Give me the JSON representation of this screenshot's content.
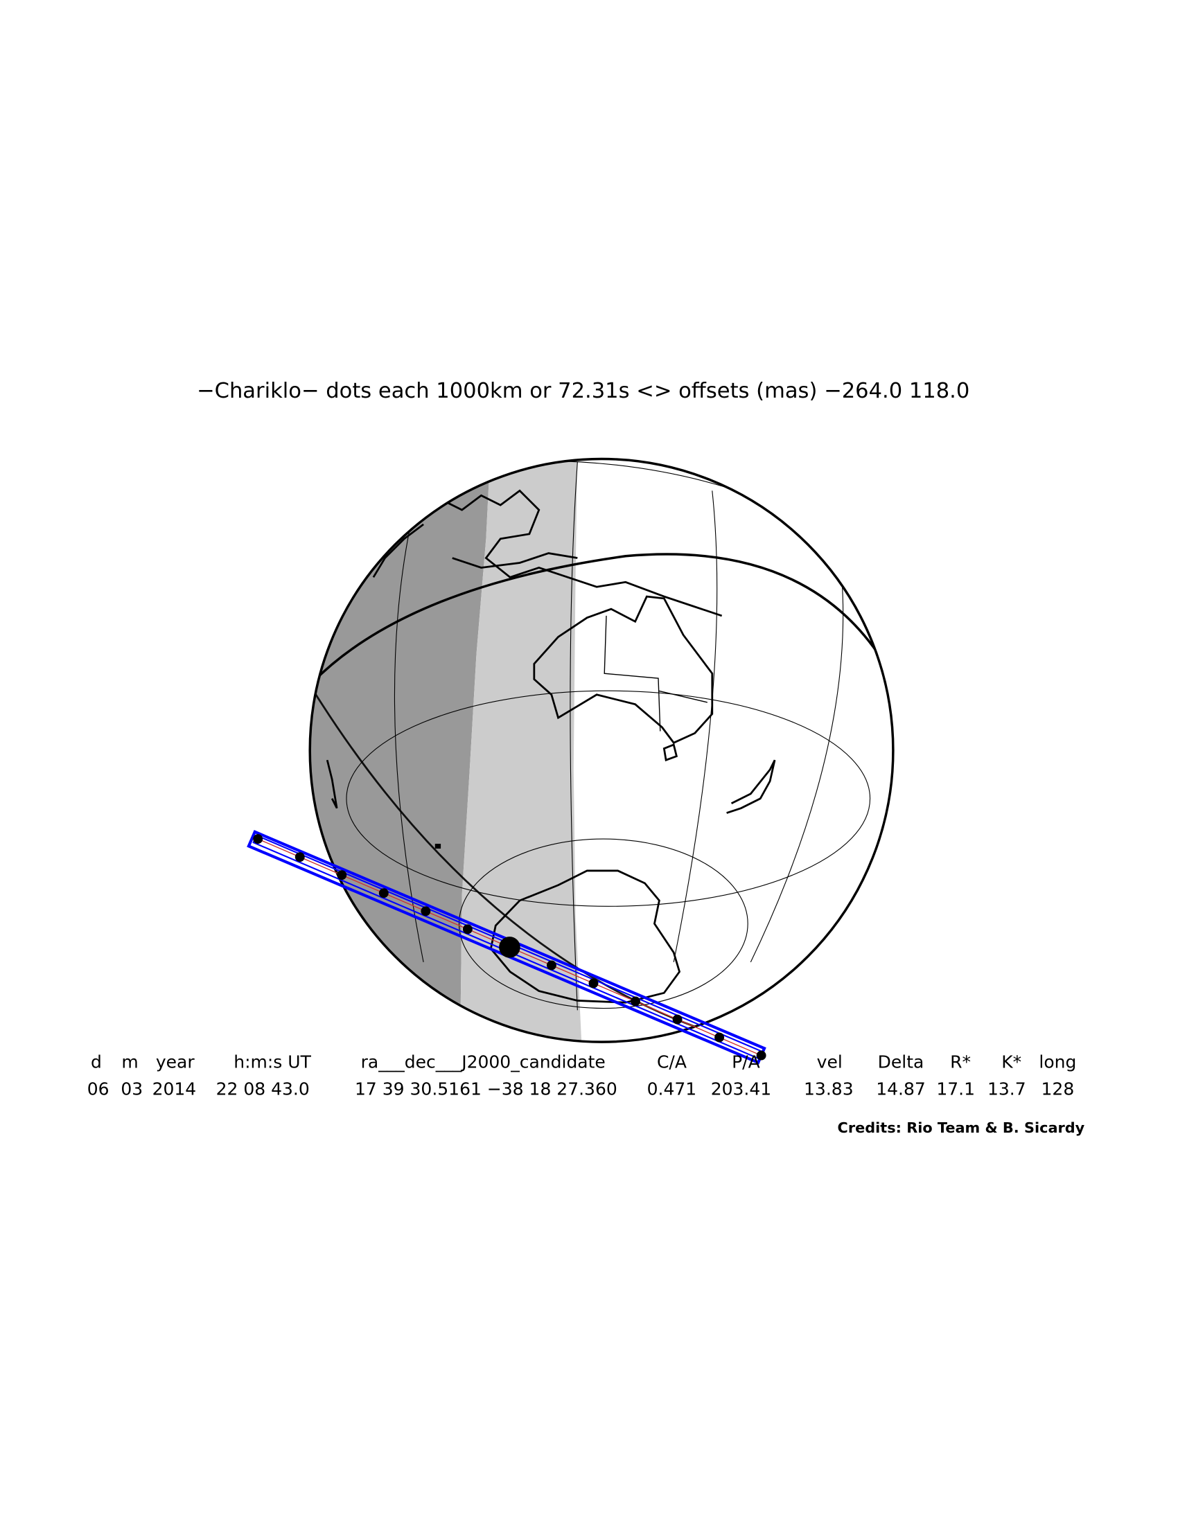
{
  "title": "−Chariklo− dots each 1000km or 72.31s <> offsets (mas) −264.0   118.0",
  "table": {
    "headers": [
      "d",
      "m",
      "year",
      "h:m:s UT",
      "ra___dec___J2000_candidate",
      "C/A",
      "P/A",
      "vel",
      "Delta",
      "R*",
      "K*",
      "long"
    ],
    "values": [
      "06",
      "03",
      "2014",
      "22 08 43.0",
      "17 39 30.5161 −38 18 27.360",
      "0.471",
      "203.41",
      "13.83",
      "14.87",
      "17.1",
      "13.7",
      "128"
    ]
  },
  "credits": "Credits: Rio Team & B. Sicardy"
}
